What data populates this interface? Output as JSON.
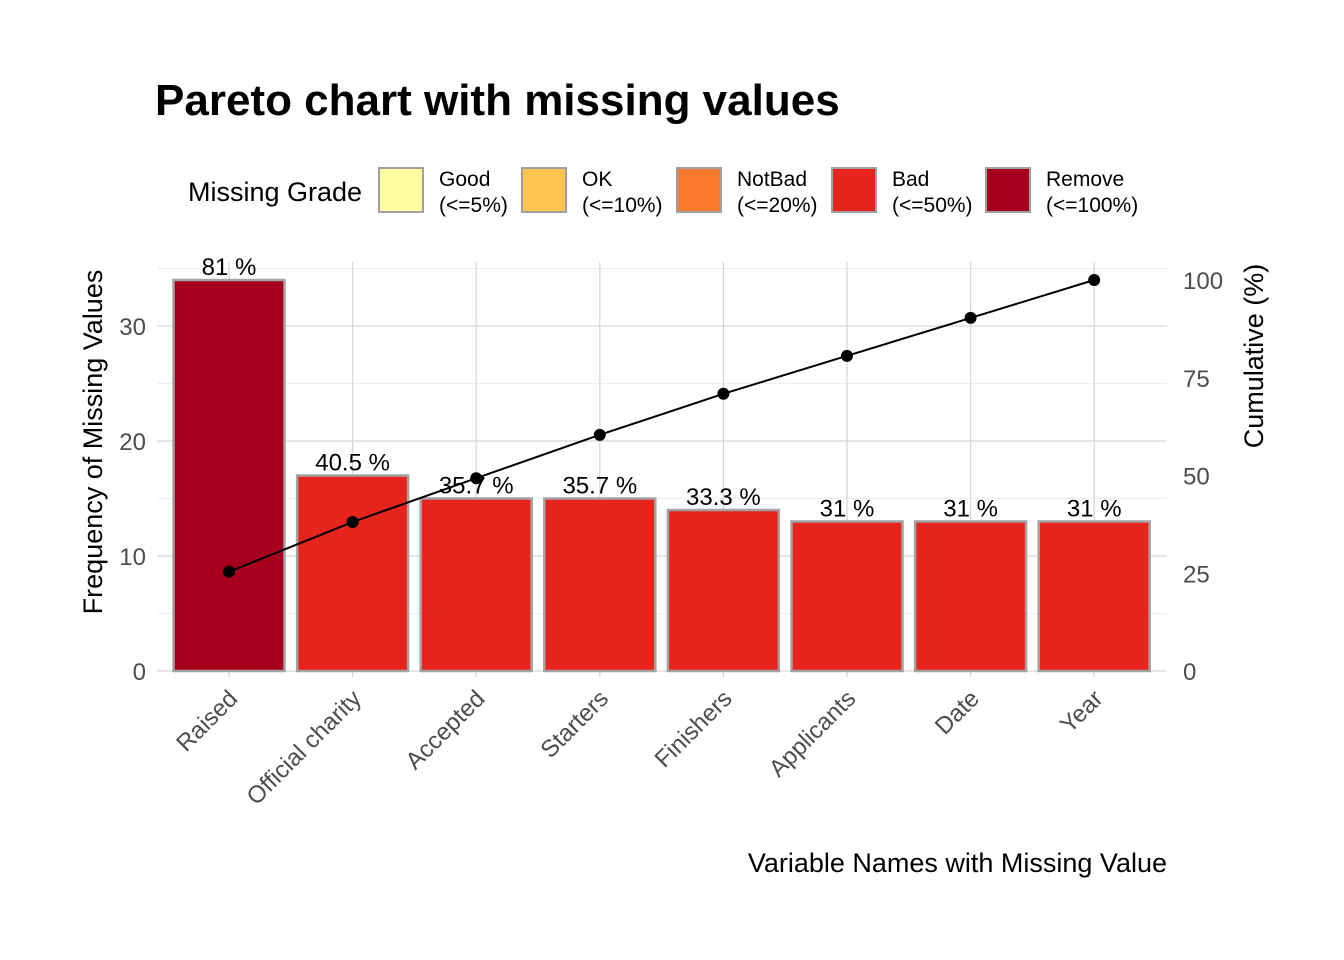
{
  "chart_data": {
    "type": "bar",
    "title": "Pareto chart with missing values",
    "xlabel": "Variable Names with Missing Value",
    "ylabel": "Frequency of Missing Values",
    "y2label": "Cumulative (%)",
    "ylim": [
      0,
      35.5
    ],
    "y2lim": [
      0,
      100
    ],
    "yticks": [
      "0",
      "10",
      "20",
      "30"
    ],
    "y2ticks": [
      "0",
      "25",
      "50",
      "75",
      "100"
    ],
    "grid": true,
    "legend": {
      "title": "Missing Grade",
      "position": "top",
      "items": [
        {
          "name": "Good",
          "range": "(<=5%)",
          "color": "#FFFFA1"
        },
        {
          "name": "OK",
          "range": "(<=10%)",
          "color": "#FEC44F"
        },
        {
          "name": "NotBad",
          "range": "(<=20%)",
          "color": "#FD7B2E"
        },
        {
          "name": "Bad",
          "range": "(<=50%)",
          "color": "#E8251D"
        },
        {
          "name": "Remove",
          "range": "(<=100%)",
          "color": "#A6001E"
        }
      ]
    },
    "categories": [
      "Raised",
      "Official charity",
      "Accepted",
      "Starters",
      "Finishers",
      "Applicants",
      "Date",
      "Year"
    ],
    "values": [
      34,
      17,
      15,
      15,
      14,
      13,
      13,
      13
    ],
    "percent_labels": [
      "81 %",
      "40.5 %",
      "35.7 %",
      "35.7 %",
      "33.3 %",
      "31 %",
      "31 %",
      "31 %"
    ],
    "grades": [
      "Remove",
      "Bad",
      "Bad",
      "Bad",
      "Bad",
      "Bad",
      "Bad",
      "Bad"
    ],
    "cumulative": [
      25.4,
      38.1,
      49.3,
      60.4,
      70.9,
      80.6,
      90.3,
      100
    ]
  }
}
